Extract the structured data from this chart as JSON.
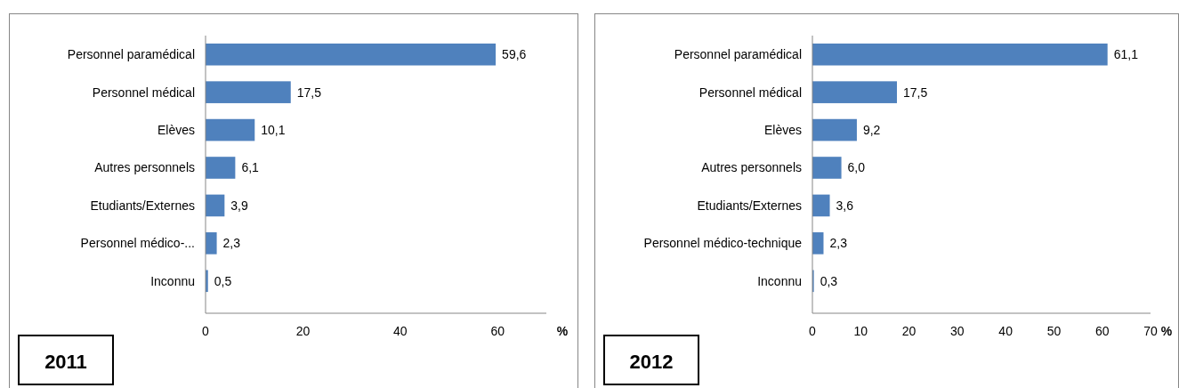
{
  "chart_data": [
    {
      "type": "bar",
      "orientation": "horizontal",
      "title": "2011",
      "xlabel": "%",
      "categories": [
        "Personnel paramédical",
        "Personnel médical",
        "Elèves",
        "Autres personnels",
        "Etudiants/Externes",
        "Personnel médico-...",
        "Inconnu"
      ],
      "values": [
        59.6,
        17.5,
        10.1,
        6.1,
        3.9,
        2.3,
        0.5
      ],
      "value_labels": [
        "59,6",
        "17,5",
        "10,1",
        "6,1",
        "3,9",
        "2,3",
        "0,5"
      ],
      "color": "#4f81bd",
      "xlim": [
        0,
        70
      ],
      "xticks": [
        0,
        20,
        40,
        60
      ],
      "grid": false
    },
    {
      "type": "bar",
      "orientation": "horizontal",
      "title": "2012",
      "xlabel": "%",
      "categories": [
        "Personnel paramédical",
        "Personnel médical",
        "Elèves",
        "Autres personnels",
        "Etudiants/Externes",
        "Personnel médico-technique",
        "Inconnu"
      ],
      "values": [
        61.1,
        17.5,
        9.2,
        6.0,
        3.6,
        2.3,
        0.3
      ],
      "value_labels": [
        "61,1",
        "17,5",
        "9,2",
        "6,0",
        "3,6",
        "2,3",
        "0,3"
      ],
      "color": "#4f81bd",
      "xlim": [
        0,
        70
      ],
      "xticks": [
        0,
        10,
        20,
        30,
        40,
        50,
        60,
        70
      ],
      "grid": false
    }
  ]
}
